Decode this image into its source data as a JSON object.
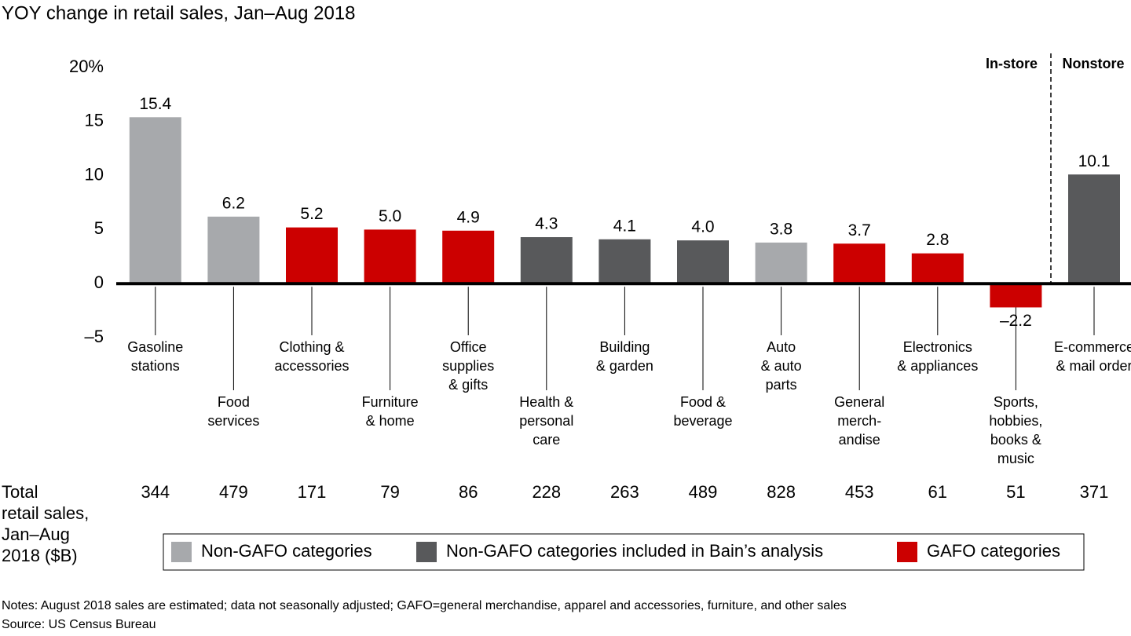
{
  "chart_data": {
    "type": "bar",
    "title": "YOY change in retail sales, Jan–Aug 2018",
    "categories": [
      "Gasoline\nstations",
      "Food\nservices",
      "Clothing &\naccessories",
      "Furniture\n& home",
      "Office\nsupplies\n& gifts",
      "Health &\npersonal\ncare",
      "Building\n& garden",
      "Food &\nbeverage",
      "Auto\n& auto\nparts",
      "General\nmerch-\nandise",
      "Electronics\n& appliances",
      "Sports,\nhobbies,\nbooks &\nmusic",
      "E-commerce\n& mail order"
    ],
    "series": [
      {
        "name": "Non-GAFO categories",
        "color": "#a7a9ac",
        "values": [
          15.4,
          6.2,
          null,
          null,
          null,
          null,
          null,
          null,
          3.8,
          null,
          null,
          null,
          null
        ],
        "value_labels": [
          "15.4",
          "6.2",
          null,
          null,
          null,
          null,
          null,
          null,
          "3.8",
          null,
          null,
          null,
          null
        ]
      },
      {
        "name": "Non-GAFO categories included in Bain’s analysis",
        "color": "#58595b",
        "values": [
          null,
          null,
          null,
          null,
          null,
          4.3,
          4.1,
          4.0,
          null,
          null,
          null,
          null,
          10.1
        ],
        "value_labels": [
          null,
          null,
          null,
          null,
          null,
          "4.3",
          "4.1",
          "4.0",
          null,
          null,
          null,
          null,
          "10.1"
        ]
      },
      {
        "name": "GAFO categories",
        "color": "#cc0000",
        "values": [
          null,
          null,
          5.2,
          5.0,
          4.9,
          null,
          null,
          null,
          null,
          3.7,
          2.8,
          -2.2,
          null
        ],
        "value_labels": [
          null,
          null,
          "5.2",
          "5.0",
          "4.9",
          null,
          null,
          null,
          null,
          "3.7",
          "2.8",
          "–2.2",
          null
        ]
      }
    ],
    "ylim": [
      -5,
      20
    ],
    "yticks": [
      {
        "value": -5,
        "label": "–5"
      },
      0,
      5,
      10,
      15,
      {
        "value": 20,
        "label": "20%"
      }
    ],
    "annotations": [
      "In-store",
      "Nonstore"
    ],
    "totals": {
      "label": "Total\nretail sales,\nJan–Aug\n2018 ($B)",
      "values": [
        "344",
        "479",
        "171",
        "79",
        "86",
        "228",
        "263",
        "489",
        "828",
        "453",
        "61",
        "51",
        "371"
      ]
    },
    "notes": "Notes: August 2018 sales are estimated; data not seasonally adjusted; GAFO=general merchandise, apparel and accessories, furniture, and other sales",
    "source": "Source: US Census Bureau"
  }
}
